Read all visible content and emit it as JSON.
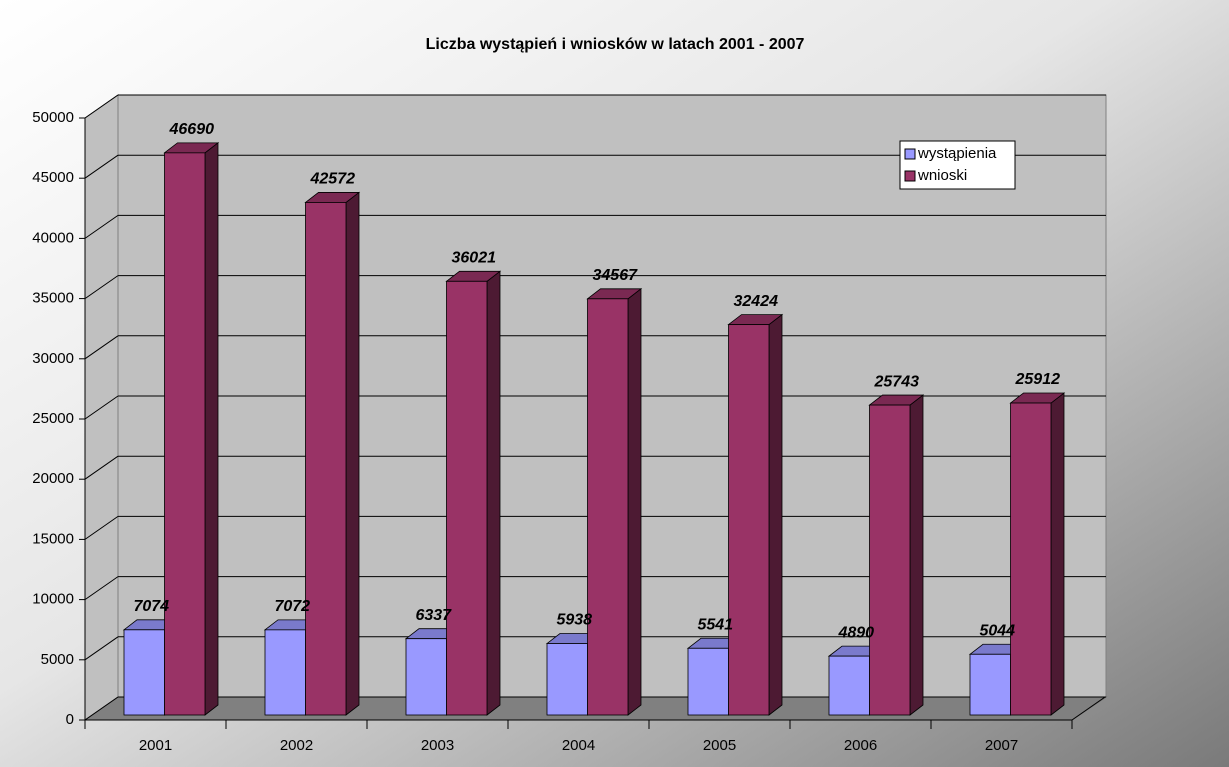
{
  "chart_data": {
    "type": "bar3d",
    "title": "Liczba wystąpień i wniosków w latach 2001 - 2007",
    "categories": [
      "2001",
      "2002",
      "2003",
      "2004",
      "2005",
      "2006",
      "2007"
    ],
    "series": [
      {
        "name": "wystąpienia",
        "color": "#9999ff",
        "values": [
          7074,
          7072,
          6337,
          5938,
          5541,
          4890,
          5044
        ]
      },
      {
        "name": "wnioski",
        "color": "#993366",
        "values": [
          46690,
          42572,
          36021,
          34567,
          32424,
          25743,
          25912
        ]
      }
    ],
    "ylim": [
      0,
      50000
    ],
    "yticks": [
      0,
      5000,
      10000,
      15000,
      20000,
      25000,
      30000,
      35000,
      40000,
      45000,
      50000
    ],
    "grid": true,
    "legend": "top-right"
  }
}
